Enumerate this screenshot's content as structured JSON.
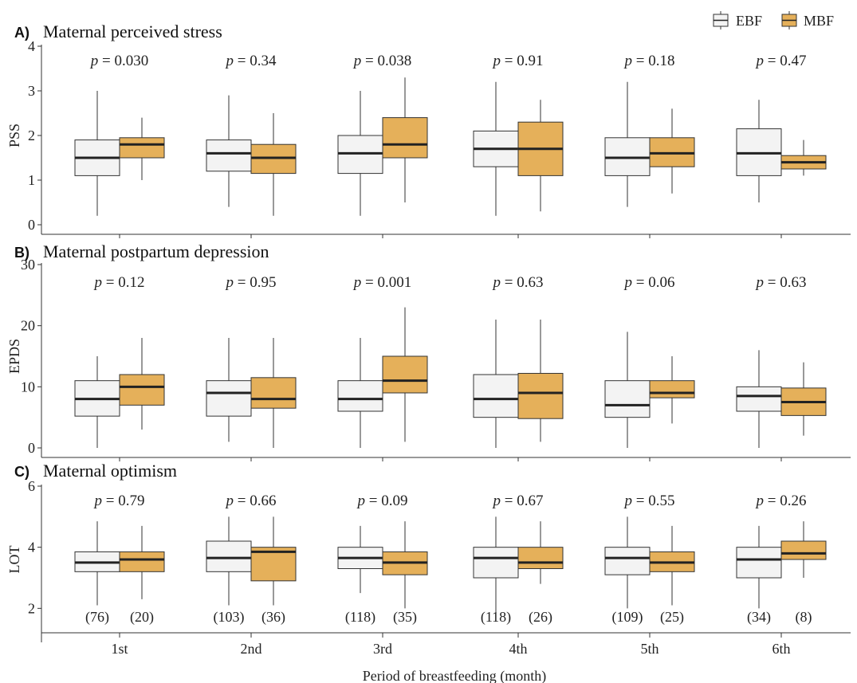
{
  "legend": {
    "position": "top-right",
    "items": [
      {
        "label": "EBF",
        "color": "#f3f3f3"
      },
      {
        "label": "MBF",
        "color": "#e5b05a"
      }
    ]
  },
  "x_axis": {
    "label": "Period of breastfeeding (month)",
    "categories": [
      "1st",
      "2nd",
      "3rd",
      "4th",
      "5th",
      "6th"
    ]
  },
  "sample_sizes": {
    "EBF": [
      "(76)",
      "(103)",
      "(118)",
      "(118)",
      "(109)",
      "(34)"
    ],
    "MBF": [
      "(20)",
      "(36)",
      "(35)",
      "(26)",
      "(25)",
      "(8)"
    ]
  },
  "chart_data": [
    {
      "type": "box",
      "panel_letter": "A)",
      "title": "Maternal perceived stress",
      "ylabel": "PSS",
      "ylim": [
        0,
        4
      ],
      "yticks": [
        0,
        1,
        2,
        3,
        4
      ],
      "p_values": [
        "= 0.030",
        "= 0.34",
        "= 0.038",
        "= 0.91",
        "= 0.18",
        "= 0.47"
      ],
      "series": [
        {
          "name": "EBF",
          "boxes": [
            {
              "min": 0.2,
              "q1": 1.1,
              "median": 1.5,
              "q3": 1.9,
              "max": 3.0
            },
            {
              "min": 0.4,
              "q1": 1.2,
              "median": 1.6,
              "q3": 1.9,
              "max": 2.9
            },
            {
              "min": 0.2,
              "q1": 1.15,
              "median": 1.6,
              "q3": 2.0,
              "max": 3.0
            },
            {
              "min": 0.2,
              "q1": 1.3,
              "median": 1.7,
              "q3": 2.1,
              "max": 3.2
            },
            {
              "min": 0.4,
              "q1": 1.1,
              "median": 1.5,
              "q3": 1.95,
              "max": 3.2
            },
            {
              "min": 0.5,
              "q1": 1.1,
              "median": 1.6,
              "q3": 2.15,
              "max": 2.8
            }
          ]
        },
        {
          "name": "MBF",
          "boxes": [
            {
              "min": 1.0,
              "q1": 1.5,
              "median": 1.8,
              "q3": 1.95,
              "max": 2.4
            },
            {
              "min": 0.2,
              "q1": 1.15,
              "median": 1.5,
              "q3": 1.8,
              "max": 2.5
            },
            {
              "min": 0.5,
              "q1": 1.5,
              "median": 1.8,
              "q3": 2.4,
              "max": 3.3
            },
            {
              "min": 0.3,
              "q1": 1.1,
              "median": 1.7,
              "q3": 2.3,
              "max": 2.8
            },
            {
              "min": 0.7,
              "q1": 1.3,
              "median": 1.6,
              "q3": 1.95,
              "max": 2.6
            },
            {
              "min": 1.1,
              "q1": 1.25,
              "median": 1.4,
              "q3": 1.55,
              "max": 1.9
            }
          ]
        }
      ]
    },
    {
      "type": "box",
      "panel_letter": "B)",
      "title": "Maternal postpartum depression",
      "ylabel": "EPDS",
      "ylim": [
        0,
        30
      ],
      "yticks": [
        0,
        10,
        20,
        30
      ],
      "p_values": [
        "= 0.12",
        "= 0.95",
        "= 0.001",
        "= 0.63",
        "= 0.06",
        "= 0.63"
      ],
      "series": [
        {
          "name": "EBF",
          "boxes": [
            {
              "min": 0,
              "q1": 5.2,
              "median": 8,
              "q3": 11,
              "max": 15
            },
            {
              "min": 1,
              "q1": 5.2,
              "median": 9,
              "q3": 11,
              "max": 18
            },
            {
              "min": 0,
              "q1": 6,
              "median": 8,
              "q3": 11,
              "max": 18
            },
            {
              "min": 0,
              "q1": 5,
              "median": 8,
              "q3": 12,
              "max": 21
            },
            {
              "min": 0,
              "q1": 5,
              "median": 7,
              "q3": 11,
              "max": 19
            },
            {
              "min": 0,
              "q1": 6,
              "median": 8.5,
              "q3": 10,
              "max": 16
            }
          ]
        },
        {
          "name": "MBF",
          "boxes": [
            {
              "min": 3,
              "q1": 7,
              "median": 10,
              "q3": 12,
              "max": 18
            },
            {
              "min": 0,
              "q1": 6.5,
              "median": 8,
              "q3": 11.5,
              "max": 18
            },
            {
              "min": 1,
              "q1": 9,
              "median": 11,
              "q3": 15,
              "max": 23
            },
            {
              "min": 1,
              "q1": 4.8,
              "median": 9,
              "q3": 12.2,
              "max": 21
            },
            {
              "min": 4,
              "q1": 8.2,
              "median": 9,
              "q3": 11,
              "max": 15
            },
            {
              "min": 2,
              "q1": 5.3,
              "median": 7.5,
              "q3": 9.8,
              "max": 14
            }
          ]
        }
      ]
    },
    {
      "type": "box",
      "panel_letter": "C)",
      "title": "Maternal optimism",
      "ylabel": "LOT",
      "ylim": [
        1.2,
        6
      ],
      "yticks": [
        2,
        4,
        6
      ],
      "p_values": [
        "= 0.79",
        "= 0.66",
        "= 0.09",
        "= 0.67",
        "= 0.55",
        "= 0.26"
      ],
      "series": [
        {
          "name": "EBF",
          "boxes": [
            {
              "min": 2.1,
              "q1": 3.2,
              "median": 3.5,
              "q3": 3.85,
              "max": 4.85
            },
            {
              "min": 2.1,
              "q1": 3.2,
              "median": 3.65,
              "q3": 4.2,
              "max": 5.0
            },
            {
              "min": 2.5,
              "q1": 3.3,
              "median": 3.65,
              "q3": 4.0,
              "max": 4.7
            },
            {
              "min": 1.8,
              "q1": 3.0,
              "median": 3.65,
              "q3": 4.0,
              "max": 5.0
            },
            {
              "min": 2.0,
              "q1": 3.1,
              "median": 3.65,
              "q3": 4.0,
              "max": 5.0
            },
            {
              "min": 2.0,
              "q1": 3.0,
              "median": 3.6,
              "q3": 4.0,
              "max": 4.7
            }
          ]
        },
        {
          "name": "MBF",
          "boxes": [
            {
              "min": 2.3,
              "q1": 3.2,
              "median": 3.6,
              "q3": 3.85,
              "max": 4.7
            },
            {
              "min": 2.1,
              "q1": 2.9,
              "median": 3.85,
              "q3": 4.0,
              "max": 5.0
            },
            {
              "min": 2.0,
              "q1": 3.1,
              "median": 3.5,
              "q3": 3.85,
              "max": 4.85
            },
            {
              "min": 2.8,
              "q1": 3.3,
              "median": 3.5,
              "q3": 4.0,
              "max": 4.85
            },
            {
              "min": 2.1,
              "q1": 3.2,
              "median": 3.5,
              "q3": 3.85,
              "max": 4.7
            },
            {
              "min": 3.0,
              "q1": 3.6,
              "median": 3.8,
              "q3": 4.2,
              "max": 4.85
            }
          ]
        }
      ]
    }
  ]
}
